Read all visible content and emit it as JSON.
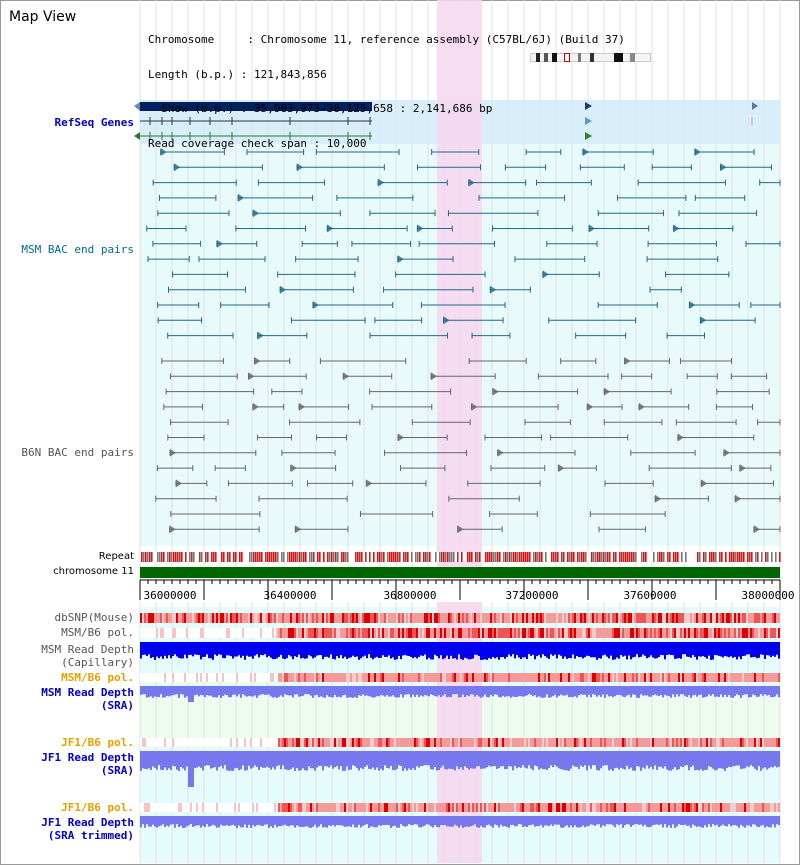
{
  "page_title": "Map View",
  "info": {
    "chromosome_line": "Chromosome     : Chromosome 11, reference assembly (C57BL/6J) (Build 37)",
    "length_line": "Length (b.p.) : 121,843,856",
    "show_line": "  Show (b.p.) : 35,983,973-38,125,658 : 2,141,686 bp",
    "coverage_line": "Read coverage check span : 10,000"
  },
  "tracks": {
    "refseq": "RefSeq Genes",
    "msm_bac": "MSM BAC end pairs",
    "b6n_bac": "B6N BAC end pairs",
    "repeat": "Repeat",
    "chromosome": "chromosome 11",
    "dbsnp": "dbSNP(Mouse)",
    "msm_b6_pol_1": "MSM/B6 pol.",
    "msm_depth_cap": "MSM Read Depth\n(Capillary)",
    "msm_b6_pol_2": "MSM/B6 pol.",
    "msm_depth_sra": "MSM Read Depth\n(SRA)",
    "jf1_b6_pol_1": "JF1/B6 pol.",
    "jf1_depth_sra": "JF1 Read Depth\n(SRA)",
    "jf1_b6_pol_2": "JF1/B6 pol.",
    "jf1_depth_trim": "JF1 Read Depth\n(SRA trimmed)"
  },
  "axis_ticks": [
    "36000000",
    "36400000",
    "36800000",
    "37200000",
    "37600000",
    "38000000"
  ],
  "colors": {
    "refseq_bg": "#d8eefb",
    "track_bg": "#e6fbfb",
    "highlight": "#f7d6ef",
    "navy": "#002060",
    "msm_line": "#1f6a8a",
    "b6n_line": "#666666",
    "chrom_green": "#006600",
    "depth_blue": "#0000ee",
    "depth_light": "#7777ee",
    "pol_red": "#ee2222"
  }
}
